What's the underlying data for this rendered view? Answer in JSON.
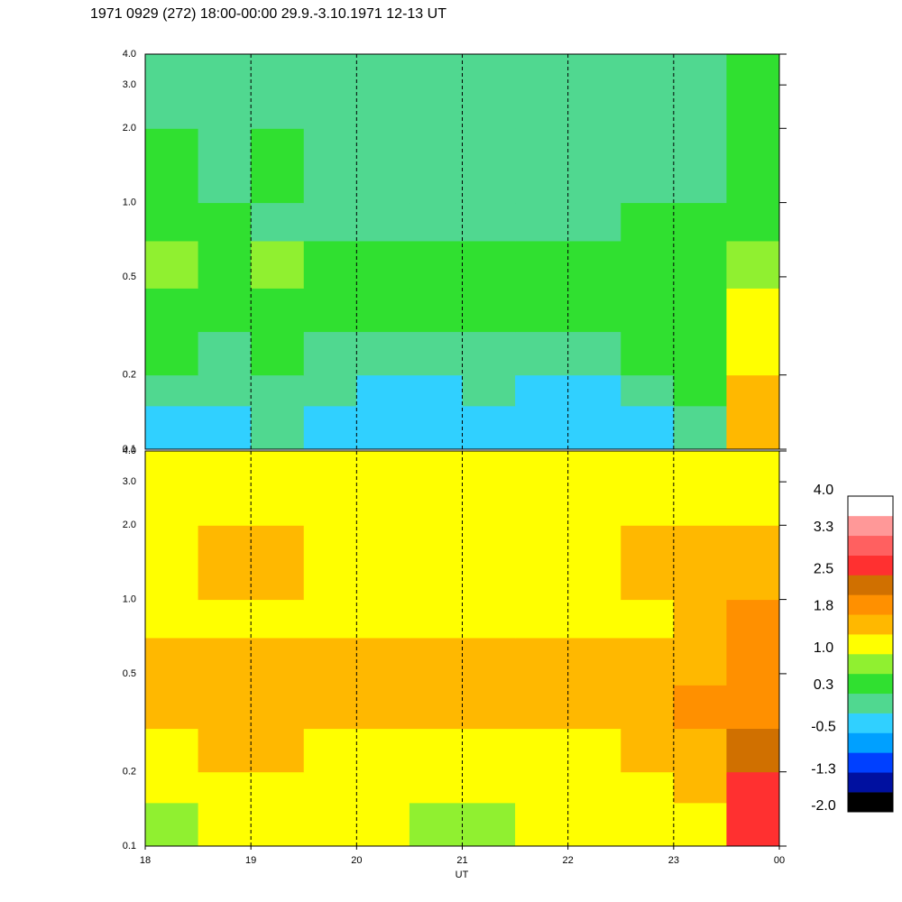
{
  "chart_data": [
    {
      "type": "heatmap",
      "title": "1971 0929 (272) 18:00-00:00 29.9.-3.10.1971  12-13 UT",
      "xlim": [
        18,
        24
      ],
      "ylim": [
        0.1,
        4
      ],
      "log_y": true,
      "yticks": [
        0.1,
        0.2,
        0.5,
        {
          "value": 1,
          "label": "1.0"
        },
        {
          "value": 2,
          "label": "2.0"
        },
        {
          "value": 3,
          "label": "3.0"
        },
        {
          "value": 4,
          "label": "4.0"
        }
      ],
      "vlines": [
        19,
        20,
        21,
        22,
        23
      ],
      "xbins": [
        18,
        18.5,
        19,
        19.5,
        20,
        20.5,
        21,
        21.5,
        22,
        22.5,
        23,
        23.5,
        24
      ],
      "ybins": [
        0.1,
        0.15,
        0.2,
        0.3,
        0.45,
        0.7,
        1.0,
        2.0,
        4.0
      ],
      "values": [
        [
          -0.2,
          -0.3,
          -0.1,
          -0.3,
          -0.3,
          -0.4,
          -0.3,
          -0.3,
          -0.4,
          -0.2,
          0.1,
          1.6
        ],
        [
          0.0,
          -0.1,
          0.0,
          -0.1,
          -0.2,
          -0.2,
          -0.1,
          -0.2,
          -0.2,
          0.0,
          0.3,
          1.5
        ],
        [
          0.3,
          0.2,
          0.3,
          0.1,
          0.2,
          0.0,
          0.2,
          0.1,
          0.1,
          0.3,
          0.4,
          1.2
        ],
        [
          0.5,
          0.4,
          0.5,
          0.4,
          0.4,
          0.4,
          0.5,
          0.4,
          0.4,
          0.4,
          0.3,
          1.0
        ],
        [
          0.8,
          0.6,
          0.7,
          0.6,
          0.5,
          0.6,
          0.6,
          0.6,
          0.6,
          0.5,
          0.5,
          0.9
        ],
        [
          0.4,
          0.3,
          0.2,
          0.2,
          0.1,
          0.0,
          0.1,
          0.2,
          0.2,
          0.4,
          0.3,
          0.6
        ],
        [
          0.3,
          0.2,
          0.3,
          0.1,
          0.1,
          0.0,
          0.1,
          0.1,
          0.2,
          0.2,
          0.2,
          0.5
        ],
        [
          0.2,
          0.1,
          0.2,
          0.1,
          0.0,
          0.1,
          0.1,
          0.0,
          0.1,
          0.1,
          0.2,
          0.4
        ]
      ]
    },
    {
      "type": "heatmap",
      "xlabel": "UT",
      "xlim": [
        18,
        24
      ],
      "ylim": [
        0.1,
        4
      ],
      "log_y": true,
      "xticks": [
        18,
        19,
        20,
        21,
        22,
        23,
        {
          "value": 24,
          "label": "00"
        }
      ],
      "yticks": [
        0.1,
        0.2,
        0.5,
        {
          "value": 1,
          "label": "1.0"
        },
        {
          "value": 2,
          "label": "2.0"
        },
        {
          "value": 3,
          "label": "3.0"
        },
        {
          "value": 4,
          "label": "4.0"
        }
      ],
      "vlines": [
        19,
        20,
        21,
        22,
        23
      ],
      "xbins": [
        18,
        18.5,
        19,
        19.5,
        20,
        20.5,
        21,
        21.5,
        22,
        22.5,
        23,
        23.5,
        24
      ],
      "ybins": [
        0.1,
        0.15,
        0.2,
        0.3,
        0.45,
        0.7,
        1.0,
        2.0,
        4.0
      ],
      "values": [
        [
          0.9,
          1.0,
          1.1,
          1.0,
          1.0,
          0.9,
          0.9,
          1.0,
          1.0,
          1.1,
          1.3,
          2.6
        ],
        [
          1.0,
          1.1,
          1.2,
          1.1,
          1.1,
          1.0,
          1.0,
          1.1,
          1.1,
          1.3,
          1.5,
          2.5
        ],
        [
          1.2,
          1.4,
          1.4,
          1.3,
          1.2,
          1.2,
          1.2,
          1.3,
          1.3,
          1.5,
          1.7,
          2.2
        ],
        [
          1.5,
          1.6,
          1.6,
          1.5,
          1.4,
          1.5,
          1.4,
          1.5,
          1.5,
          1.6,
          1.8,
          2.0
        ],
        [
          1.6,
          1.5,
          1.5,
          1.6,
          1.5,
          1.6,
          1.5,
          1.6,
          1.5,
          1.6,
          1.7,
          1.9
        ],
        [
          1.1,
          1.2,
          1.1,
          1.2,
          1.1,
          1.2,
          1.1,
          1.2,
          1.1,
          1.3,
          1.5,
          1.8
        ],
        [
          1.3,
          1.4,
          1.4,
          1.3,
          1.3,
          1.3,
          1.3,
          1.3,
          1.3,
          1.4,
          1.4,
          1.6
        ],
        [
          1.0,
          1.1,
          1.1,
          1.0,
          1.0,
          1.0,
          1.0,
          1.0,
          1.0,
          1.0,
          1.0,
          1.1
        ]
      ],
      "colorbar": {
        "lim": [
          -2.0,
          4.0
        ],
        "ticks": [
          {
            "value": -2,
            "label": "-2.0"
          },
          -1.3,
          -0.5,
          0.3,
          {
            "value": 1,
            "label": "1.0"
          },
          1.8,
          2.5,
          3.3,
          {
            "value": 4,
            "label": "4.0"
          }
        ],
        "colors": [
          "#000000",
          "#0010a0",
          "#0040ff",
          "#00a0ff",
          "#30d0ff",
          "#50d890",
          "#30e030",
          "#90f030",
          "#ffff00",
          "#ffb800",
          "#ff9000",
          "#d07000",
          "#ff3030",
          "#ff6060",
          "#ff9898",
          "#ffffff"
        ]
      }
    }
  ]
}
